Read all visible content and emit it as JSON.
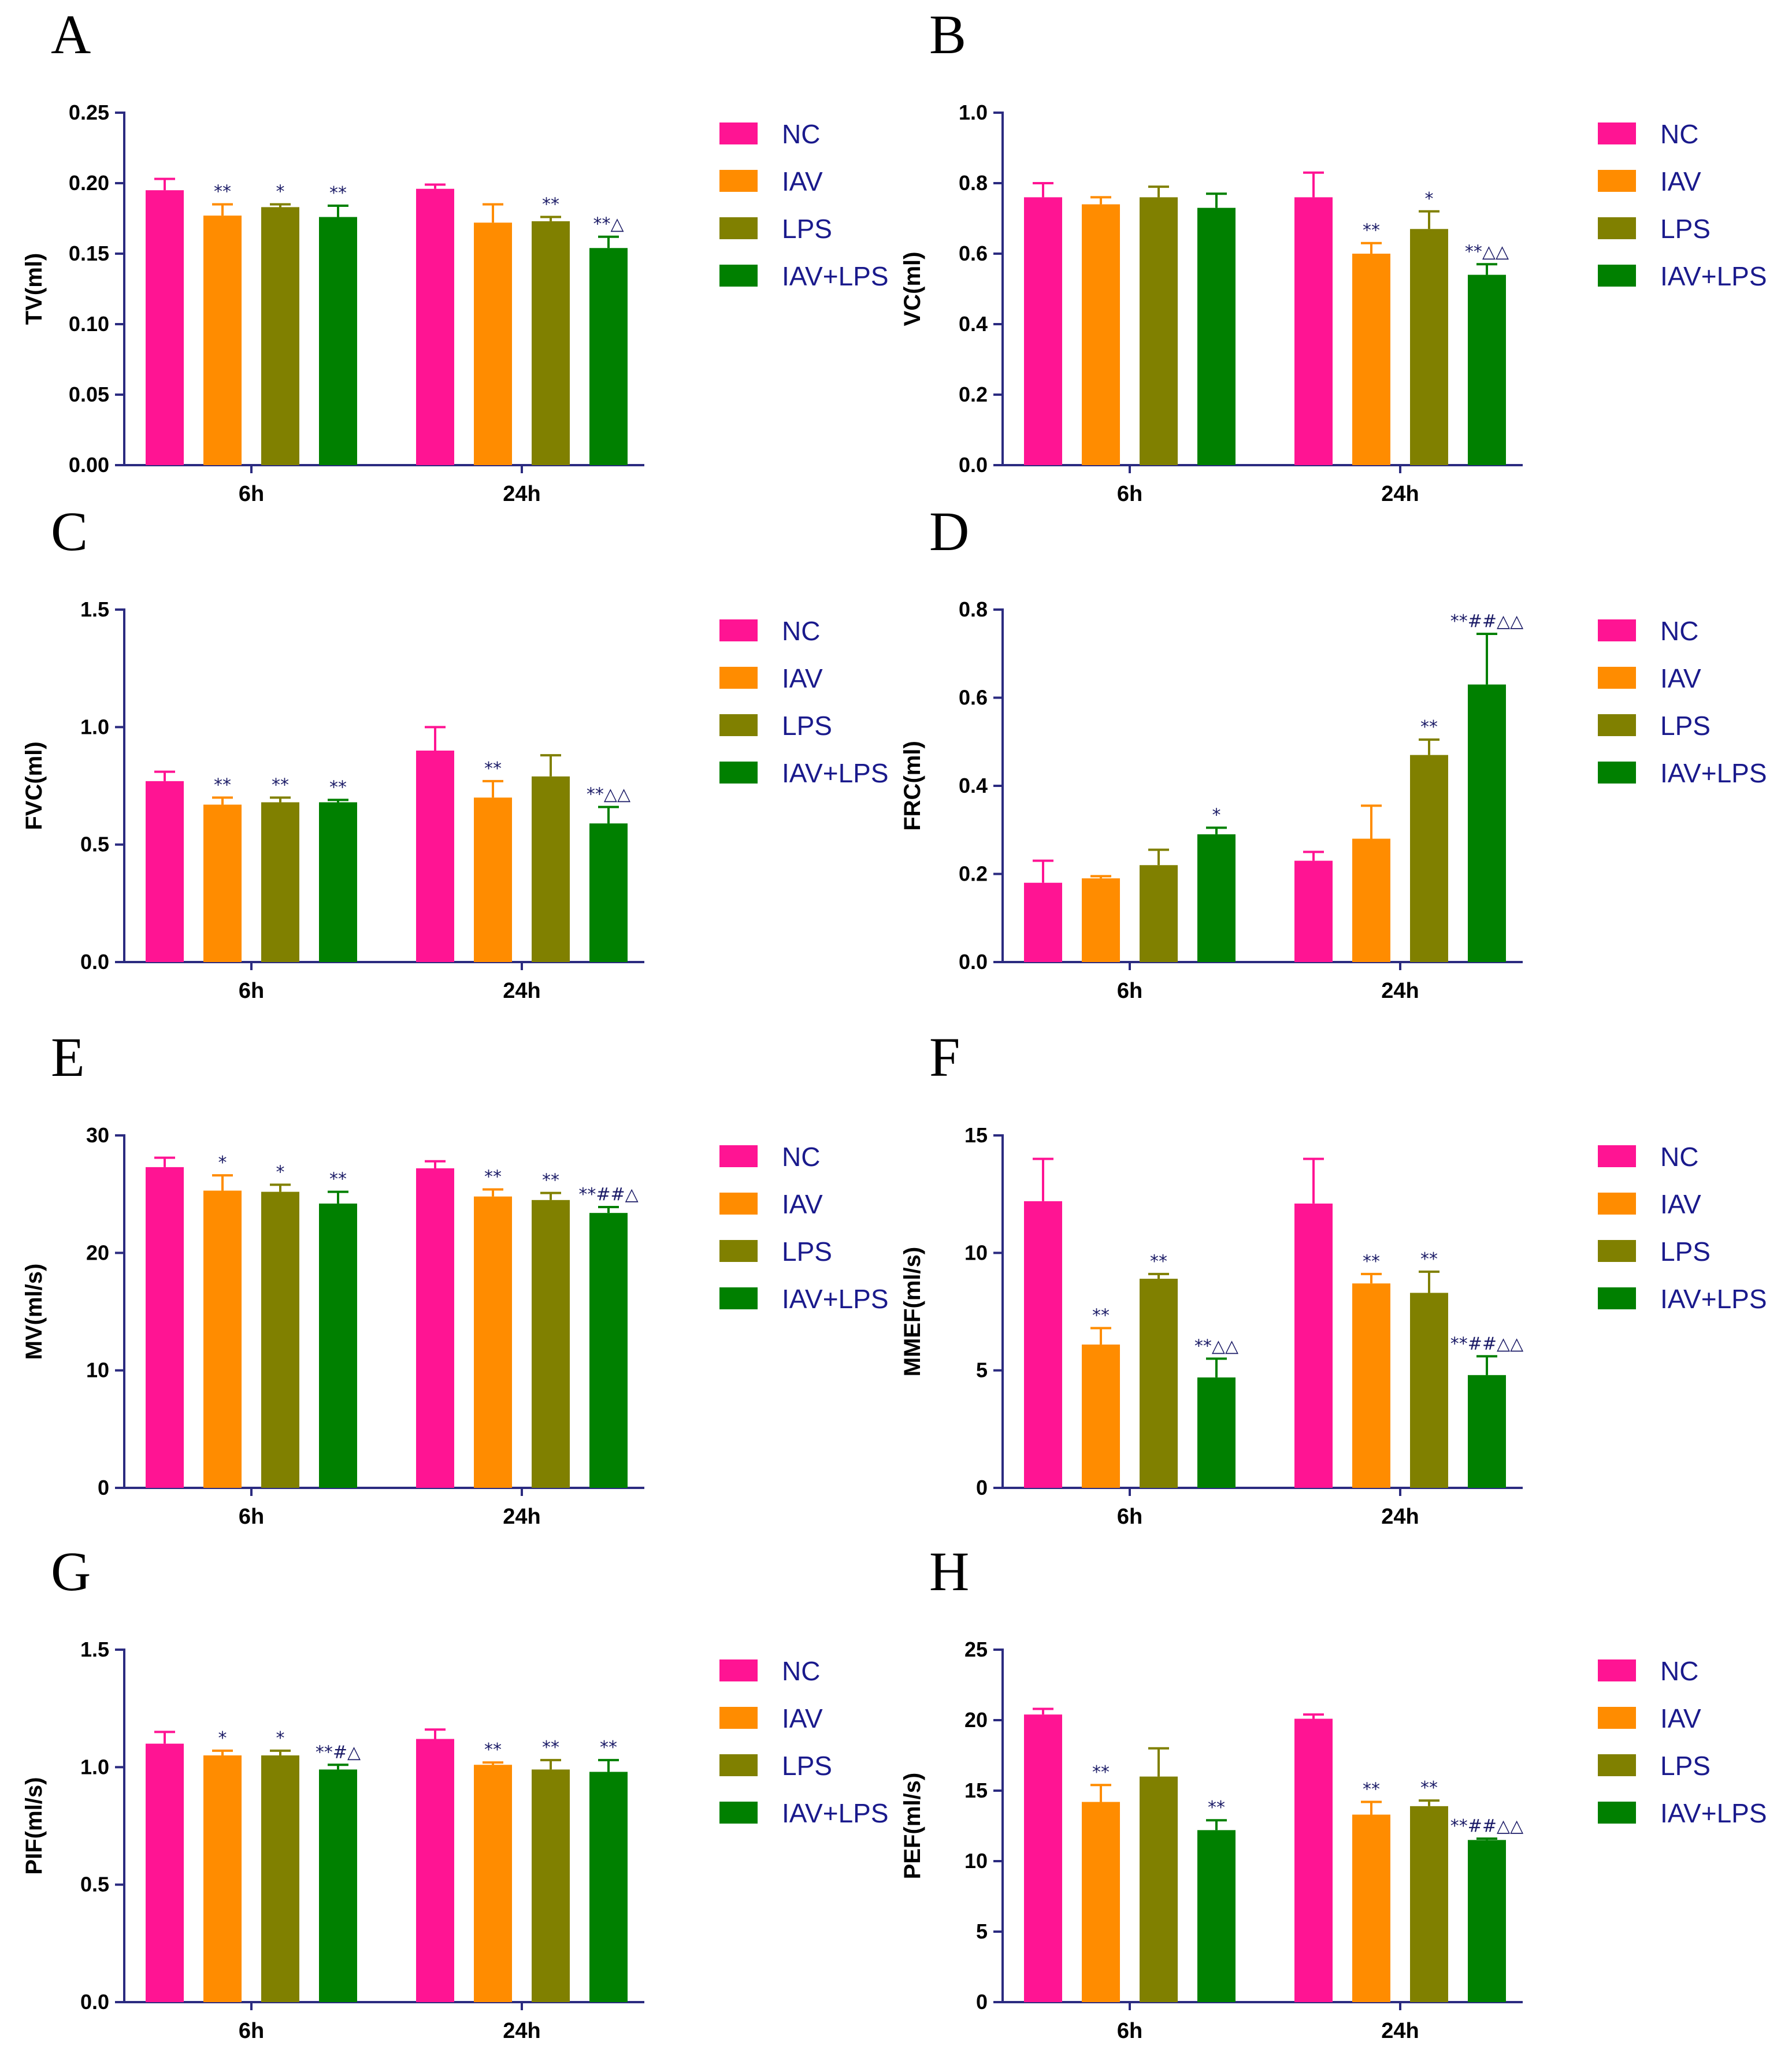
{
  "figure_label": "Lung function panels A–H",
  "groups": [
    "NC",
    "IAV",
    "LPS",
    "IAV+LPS"
  ],
  "colors": {
    "NC": "#ff1493",
    "IAV": "#ff8c00",
    "LPS": "#808000",
    "IAV+LPS": "#008000",
    "axis": "#2b2b80",
    "legend_text": "#1a1a8c"
  },
  "chart_data": [
    {
      "panel": "A",
      "type": "bar",
      "ylabel": "TV(ml)",
      "categories": [
        "6h",
        "24h"
      ],
      "ylim": [
        0,
        0.25
      ],
      "yticks": [
        "0.00",
        "0.05",
        "0.10",
        "0.15",
        "0.20",
        "0.25"
      ],
      "series": [
        {
          "name": "NC",
          "values": [
            0.195,
            0.196
          ],
          "errors": [
            0.008,
            0.003
          ],
          "sig": [
            "",
            ""
          ]
        },
        {
          "name": "IAV",
          "values": [
            0.177,
            0.172
          ],
          "errors": [
            0.008,
            0.013
          ],
          "sig": [
            "**",
            ""
          ]
        },
        {
          "name": "LPS",
          "values": [
            0.183,
            0.173
          ],
          "errors": [
            0.002,
            0.003
          ],
          "sig": [
            "*",
            "**"
          ]
        },
        {
          "name": "IAV+LPS",
          "values": [
            0.176,
            0.154
          ],
          "errors": [
            0.008,
            0.008
          ],
          "sig": [
            "**",
            "**△"
          ]
        }
      ]
    },
    {
      "panel": "B",
      "type": "bar",
      "ylabel": "VC(ml)",
      "categories": [
        "6h",
        "24h"
      ],
      "ylim": [
        0,
        1.0
      ],
      "yticks": [
        "0.0",
        "0.2",
        "0.4",
        "0.6",
        "0.8",
        "1.0"
      ],
      "series": [
        {
          "name": "NC",
          "values": [
            0.76,
            0.76
          ],
          "errors": [
            0.04,
            0.07
          ],
          "sig": [
            "",
            ""
          ]
        },
        {
          "name": "IAV",
          "values": [
            0.74,
            0.6
          ],
          "errors": [
            0.02,
            0.03
          ],
          "sig": [
            "",
            "**"
          ]
        },
        {
          "name": "LPS",
          "values": [
            0.76,
            0.67
          ],
          "errors": [
            0.03,
            0.05
          ],
          "sig": [
            "",
            "*"
          ]
        },
        {
          "name": "IAV+LPS",
          "values": [
            0.73,
            0.54
          ],
          "errors": [
            0.04,
            0.03
          ],
          "sig": [
            "",
            "**△△"
          ]
        }
      ]
    },
    {
      "panel": "C",
      "type": "bar",
      "ylabel": "FVC(ml)",
      "categories": [
        "6h",
        "24h"
      ],
      "ylim": [
        0,
        1.5
      ],
      "yticks": [
        "0.0",
        "0.5",
        "1.0",
        "1.5"
      ],
      "series": [
        {
          "name": "NC",
          "values": [
            0.77,
            0.9
          ],
          "errors": [
            0.04,
            0.1
          ],
          "sig": [
            "",
            ""
          ]
        },
        {
          "name": "IAV",
          "values": [
            0.67,
            0.7
          ],
          "errors": [
            0.03,
            0.07
          ],
          "sig": [
            "**",
            "**"
          ]
        },
        {
          "name": "LPS",
          "values": [
            0.68,
            0.79
          ],
          "errors": [
            0.02,
            0.09
          ],
          "sig": [
            "**",
            ""
          ]
        },
        {
          "name": "IAV+LPS",
          "values": [
            0.68,
            0.59
          ],
          "errors": [
            0.01,
            0.07
          ],
          "sig": [
            "**",
            "**△△"
          ]
        }
      ]
    },
    {
      "panel": "D",
      "type": "bar",
      "ylabel": "FRC(ml)",
      "categories": [
        "6h",
        "24h"
      ],
      "ylim": [
        0,
        0.8
      ],
      "yticks": [
        "0.0",
        "0.2",
        "0.4",
        "0.6",
        "0.8"
      ],
      "series": [
        {
          "name": "NC",
          "values": [
            0.18,
            0.23
          ],
          "errors": [
            0.05,
            0.02
          ],
          "sig": [
            "",
            ""
          ]
        },
        {
          "name": "IAV",
          "values": [
            0.19,
            0.28
          ],
          "errors": [
            0.005,
            0.075
          ],
          "sig": [
            "",
            ""
          ]
        },
        {
          "name": "LPS",
          "values": [
            0.22,
            0.47
          ],
          "errors": [
            0.035,
            0.035
          ],
          "sig": [
            "",
            "**"
          ]
        },
        {
          "name": "IAV+LPS",
          "values": [
            0.29,
            0.63
          ],
          "errors": [
            0.015,
            0.115
          ],
          "sig": [
            "*",
            "**##△△"
          ]
        }
      ]
    },
    {
      "panel": "E",
      "type": "bar",
      "ylabel": "MV(ml/s)",
      "categories": [
        "6h",
        "24h"
      ],
      "ylim": [
        0,
        30
      ],
      "yticks": [
        "0",
        "10",
        "20",
        "30"
      ],
      "series": [
        {
          "name": "NC",
          "values": [
            27.3,
            27.2
          ],
          "errors": [
            0.8,
            0.6
          ],
          "sig": [
            "",
            ""
          ]
        },
        {
          "name": "IAV",
          "values": [
            25.3,
            24.8
          ],
          "errors": [
            1.3,
            0.6
          ],
          "sig": [
            "*",
            "**"
          ]
        },
        {
          "name": "LPS",
          "values": [
            25.2,
            24.5
          ],
          "errors": [
            0.6,
            0.6
          ],
          "sig": [
            "*",
            "**"
          ]
        },
        {
          "name": "IAV+LPS",
          "values": [
            24.2,
            23.4
          ],
          "errors": [
            1.0,
            0.5
          ],
          "sig": [
            "**",
            "**##△"
          ]
        }
      ]
    },
    {
      "panel": "F",
      "type": "bar",
      "ylabel": "MMEF(ml/s)",
      "categories": [
        "6h",
        "24h"
      ],
      "ylim": [
        0,
        15
      ],
      "yticks": [
        "0",
        "5",
        "10",
        "15"
      ],
      "series": [
        {
          "name": "NC",
          "values": [
            12.2,
            12.1
          ],
          "errors": [
            1.8,
            1.9
          ],
          "sig": [
            "",
            ""
          ]
        },
        {
          "name": "IAV",
          "values": [
            6.1,
            8.7
          ],
          "errors": [
            0.7,
            0.4
          ],
          "sig": [
            "**",
            "**"
          ]
        },
        {
          "name": "LPS",
          "values": [
            8.9,
            8.3
          ],
          "errors": [
            0.2,
            0.9
          ],
          "sig": [
            "**",
            "**"
          ]
        },
        {
          "name": "IAV+LPS",
          "values": [
            4.7,
            4.8
          ],
          "errors": [
            0.8,
            0.8
          ],
          "sig": [
            "**△△",
            "**##△△"
          ]
        }
      ]
    },
    {
      "panel": "G",
      "type": "bar",
      "ylabel": "PIF(ml/s)",
      "categories": [
        "6h",
        "24h"
      ],
      "ylim": [
        0,
        1.5
      ],
      "yticks": [
        "0.0",
        "0.5",
        "1.0",
        "1.5"
      ],
      "series": [
        {
          "name": "NC",
          "values": [
            1.1,
            1.12
          ],
          "errors": [
            0.05,
            0.04
          ],
          "sig": [
            "",
            ""
          ]
        },
        {
          "name": "IAV",
          "values": [
            1.05,
            1.01
          ],
          "errors": [
            0.02,
            0.01
          ],
          "sig": [
            "*",
            "**"
          ]
        },
        {
          "name": "LPS",
          "values": [
            1.05,
            0.99
          ],
          "errors": [
            0.02,
            0.04
          ],
          "sig": [
            "*",
            "**"
          ]
        },
        {
          "name": "IAV+LPS",
          "values": [
            0.99,
            0.98
          ],
          "errors": [
            0.02,
            0.05
          ],
          "sig": [
            "**#△",
            "**"
          ]
        }
      ]
    },
    {
      "panel": "H",
      "type": "bar",
      "ylabel": "PEF(ml/s)",
      "categories": [
        "6h",
        "24h"
      ],
      "ylim": [
        0,
        25
      ],
      "yticks": [
        "0",
        "5",
        "10",
        "15",
        "20",
        "25"
      ],
      "series": [
        {
          "name": "NC",
          "values": [
            20.4,
            20.1
          ],
          "errors": [
            0.4,
            0.3
          ],
          "sig": [
            "",
            ""
          ]
        },
        {
          "name": "IAV",
          "values": [
            14.2,
            13.3
          ],
          "errors": [
            1.2,
            0.9
          ],
          "sig": [
            "**",
            "**"
          ]
        },
        {
          "name": "LPS",
          "values": [
            16.0,
            13.9
          ],
          "errors": [
            2.0,
            0.4
          ],
          "sig": [
            "",
            "**"
          ]
        },
        {
          "name": "IAV+LPS",
          "values": [
            12.2,
            11.5
          ],
          "errors": [
            0.7,
            0.1
          ],
          "sig": [
            "**",
            "**##△△"
          ]
        }
      ]
    }
  ]
}
